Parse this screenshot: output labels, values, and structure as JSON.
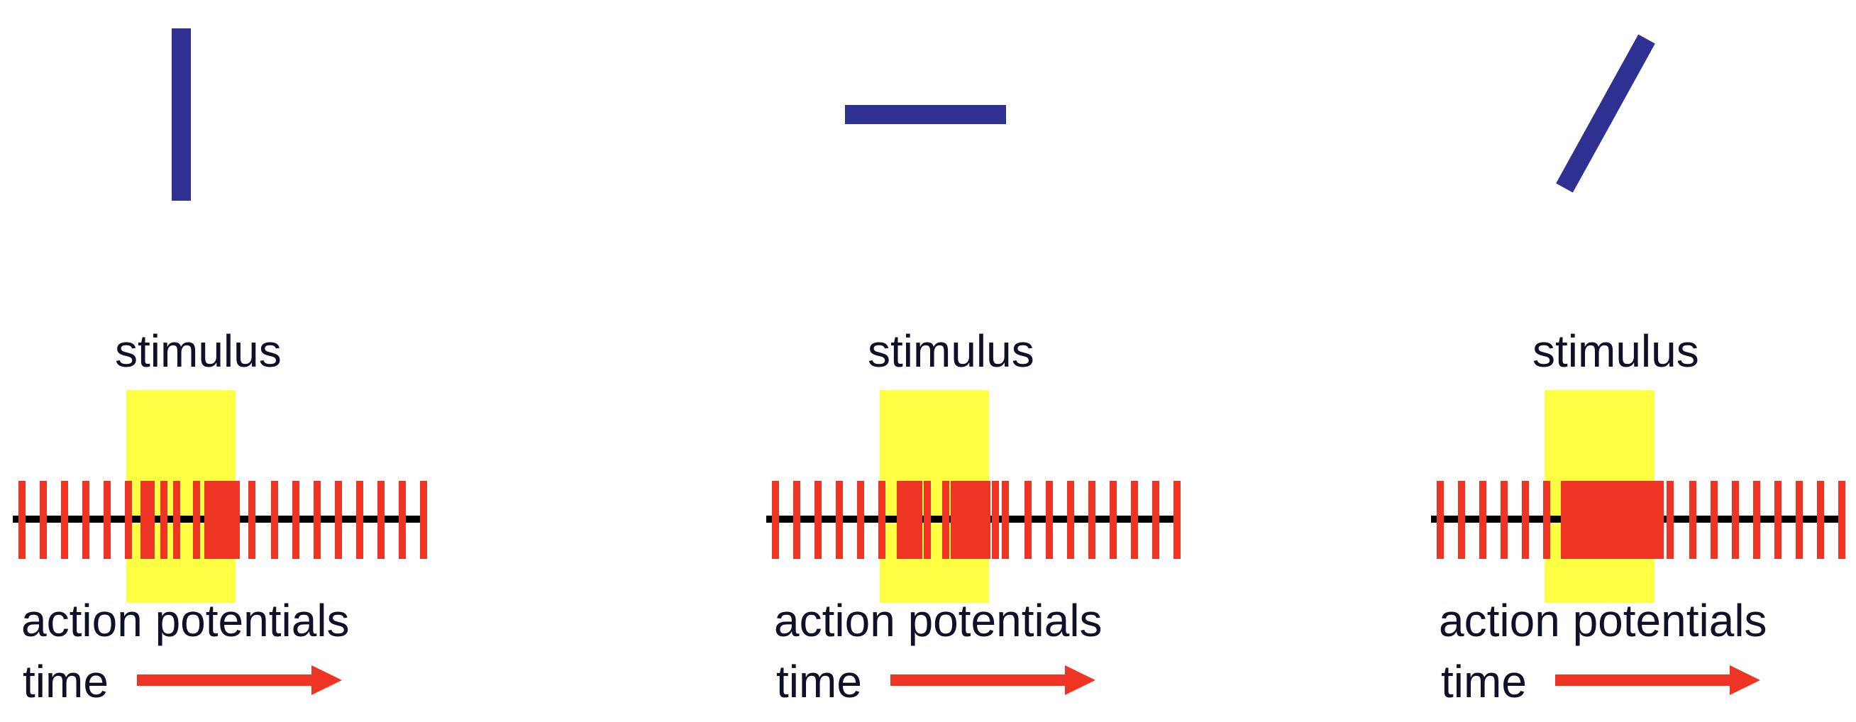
{
  "colors": {
    "stimulus_bar": "#2E3192",
    "stimulus_window": "#FFFF44",
    "spike": "#EE3524",
    "timeline": "#000000",
    "arrow": "#EE3524",
    "text": "#101028"
  },
  "panels": [
    {
      "stimulus_orientation": "vertical",
      "stimulus_label": "stimulus",
      "response_label": "action potentials",
      "time_label": "time"
    },
    {
      "stimulus_orientation": "horizontal",
      "stimulus_label": "stimulus",
      "response_label": "action potentials",
      "time_label": "time"
    },
    {
      "stimulus_orientation": "oblique",
      "stimulus_label": "stimulus",
      "response_label": "action potentials",
      "time_label": "time"
    }
  ]
}
